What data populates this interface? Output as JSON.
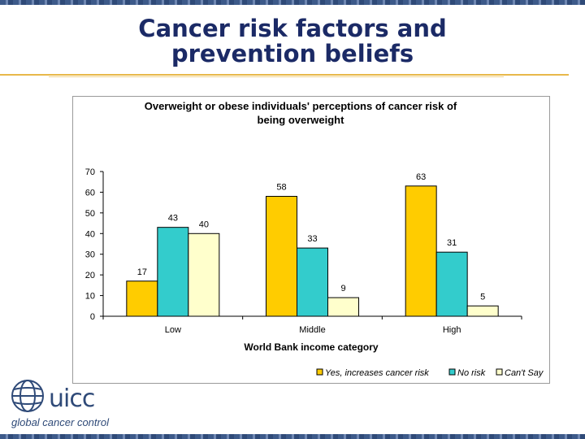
{
  "slide": {
    "title": "Cancer risk factors and prevention beliefs"
  },
  "logo": {
    "name": "uicc",
    "tagline": "global cancer control"
  },
  "chart_data": {
    "type": "bar",
    "title": "Overweight or obese individuals' perceptions of cancer risk of being overweight",
    "xlabel": "World Bank income category",
    "ylabel": "",
    "categories": [
      "Low",
      "Middle",
      "High"
    ],
    "ylim": [
      0,
      70
    ],
    "yticks": [
      0,
      10,
      20,
      30,
      40,
      50,
      60,
      70
    ],
    "grid": false,
    "legend": "bottom-right",
    "series": [
      {
        "name": "Yes, increases cancer risk",
        "values": [
          17,
          58,
          63
        ],
        "color": "#ffcc00"
      },
      {
        "name": "No risk",
        "values": [
          43,
          33,
          31
        ],
        "color": "#33cccc"
      },
      {
        "name": "Can't Say",
        "values": [
          40,
          9,
          5
        ],
        "color": "#ffffcc"
      }
    ]
  }
}
